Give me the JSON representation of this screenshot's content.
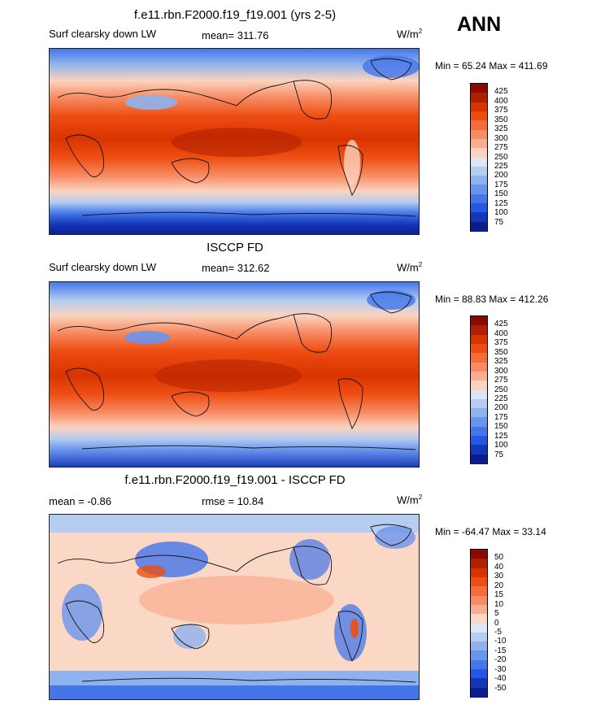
{
  "season": "ANN",
  "panels": [
    {
      "title": "f.e11.rbn.F2000.f19_f19.001 (yrs 2-5)",
      "left_label": "Surf clearsky down LW",
      "stat_label": "mean= 311.76",
      "units": "W/m",
      "units_exp": "2",
      "minmax": "Min =  65.24 Max = 411.69",
      "type": "abs"
    },
    {
      "title": "ISCCP FD",
      "left_label": "Surf clearsky down LW",
      "stat_label": "mean= 312.62",
      "units": "W/m",
      "units_exp": "2",
      "minmax": "Min =  88.83 Max = 412.26",
      "type": "abs"
    },
    {
      "title": "f.e11.rbn.F2000.f19_f19.001 - ISCCP FD",
      "left_label": "mean =  -0.86",
      "stat_label": "rmse =  10.84",
      "units": "W/m",
      "units_exp": "2",
      "minmax": "Min = -64.47 Max =  33.14",
      "type": "diff"
    }
  ],
  "colorbars": {
    "abs": {
      "labels": [
        "425",
        "400",
        "375",
        "350",
        "325",
        "300",
        "275",
        "250",
        "225",
        "200",
        "175",
        "150",
        "125",
        "100",
        "75"
      ],
      "colors": [
        "#8b0a00",
        "#b11f00",
        "#d83400",
        "#ee4d12",
        "#f56b3a",
        "#f78c64",
        "#f8ae8f",
        "#fbd3be",
        "#dbe7f5",
        "#b5cdf0",
        "#8eb2ed",
        "#6a95ec",
        "#4476ea",
        "#2557e2",
        "#1436b8",
        "#0a1d8c"
      ]
    },
    "diff": {
      "labels": [
        "50",
        "40",
        "30",
        "20",
        "15",
        "10",
        "5",
        "0",
        "-5",
        "-10",
        "-15",
        "-20",
        "-30",
        "-40",
        "-50"
      ],
      "colors": [
        "#8b0a00",
        "#b11f00",
        "#d83400",
        "#ee4d12",
        "#f56b3a",
        "#f78c64",
        "#f8ae8f",
        "#fbd8c6",
        "#dbe7f5",
        "#b5cdf0",
        "#8eb2ed",
        "#6a95ec",
        "#4476ea",
        "#2557e2",
        "#1436b8",
        "#0a1d8c"
      ]
    }
  }
}
